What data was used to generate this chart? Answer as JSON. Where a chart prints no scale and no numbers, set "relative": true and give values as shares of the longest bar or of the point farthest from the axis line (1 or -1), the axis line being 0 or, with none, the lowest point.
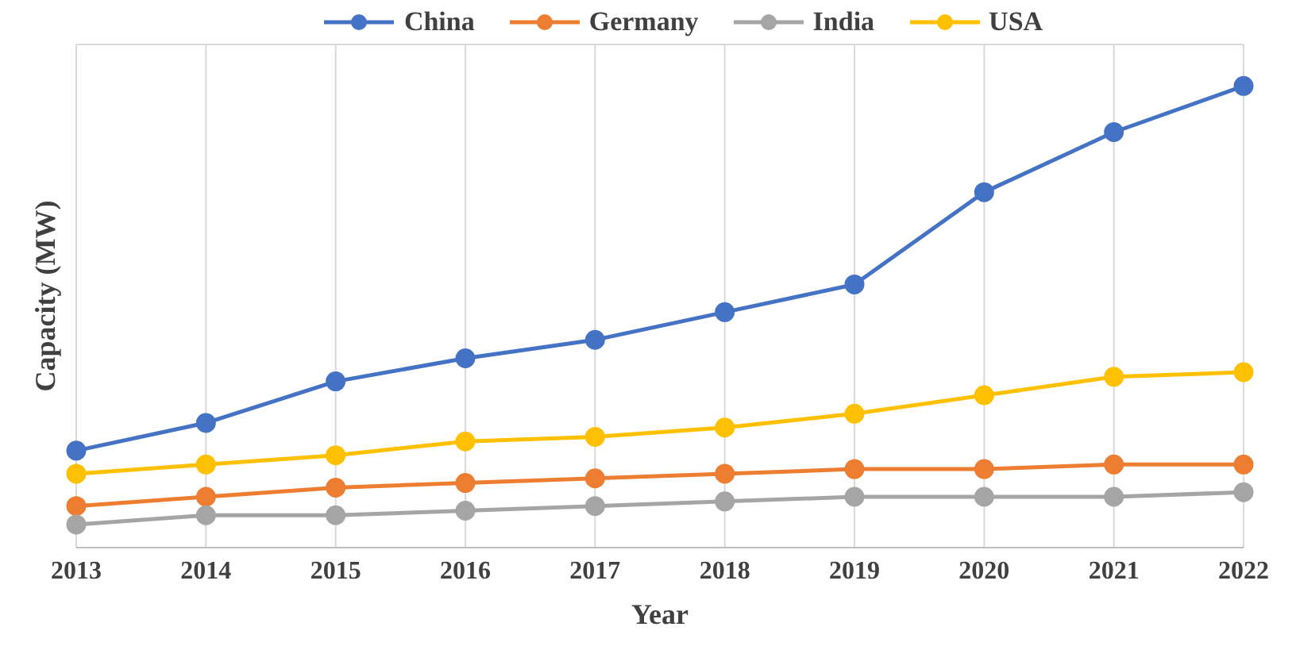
{
  "chart_data": {
    "type": "line",
    "xlabel": "Year",
    "ylabel": "Capacity (MW)",
    "relative": true,
    "grid": true,
    "legend": "top",
    "marker": "circle",
    "line_style": "solid",
    "categories": [
      "2013",
      "2014",
      "2015",
      "2016",
      "2017",
      "2018",
      "2019",
      "2020",
      "2021",
      "2022"
    ],
    "series": [
      {
        "name": "China",
        "color": "#4472c4",
        "values": [
          0.21,
          0.27,
          0.36,
          0.41,
          0.45,
          0.51,
          0.57,
          0.77,
          0.9,
          1
        ]
      },
      {
        "name": "Germany",
        "color": "#ed7d31",
        "values": [
          0.09,
          0.11,
          0.13,
          0.14,
          0.15,
          0.16,
          0.17,
          0.17,
          0.18,
          0.18
        ]
      },
      {
        "name": "India",
        "color": "#a5a5a5",
        "values": [
          0.05,
          0.07,
          0.07,
          0.08,
          0.09,
          0.1,
          0.11,
          0.11,
          0.11,
          0.12
        ]
      },
      {
        "name": "USA",
        "color": "#ffc000",
        "values": [
          0.16,
          0.18,
          0.2,
          0.23,
          0.24,
          0.26,
          0.29,
          0.33,
          0.37,
          0.38
        ]
      }
    ]
  }
}
